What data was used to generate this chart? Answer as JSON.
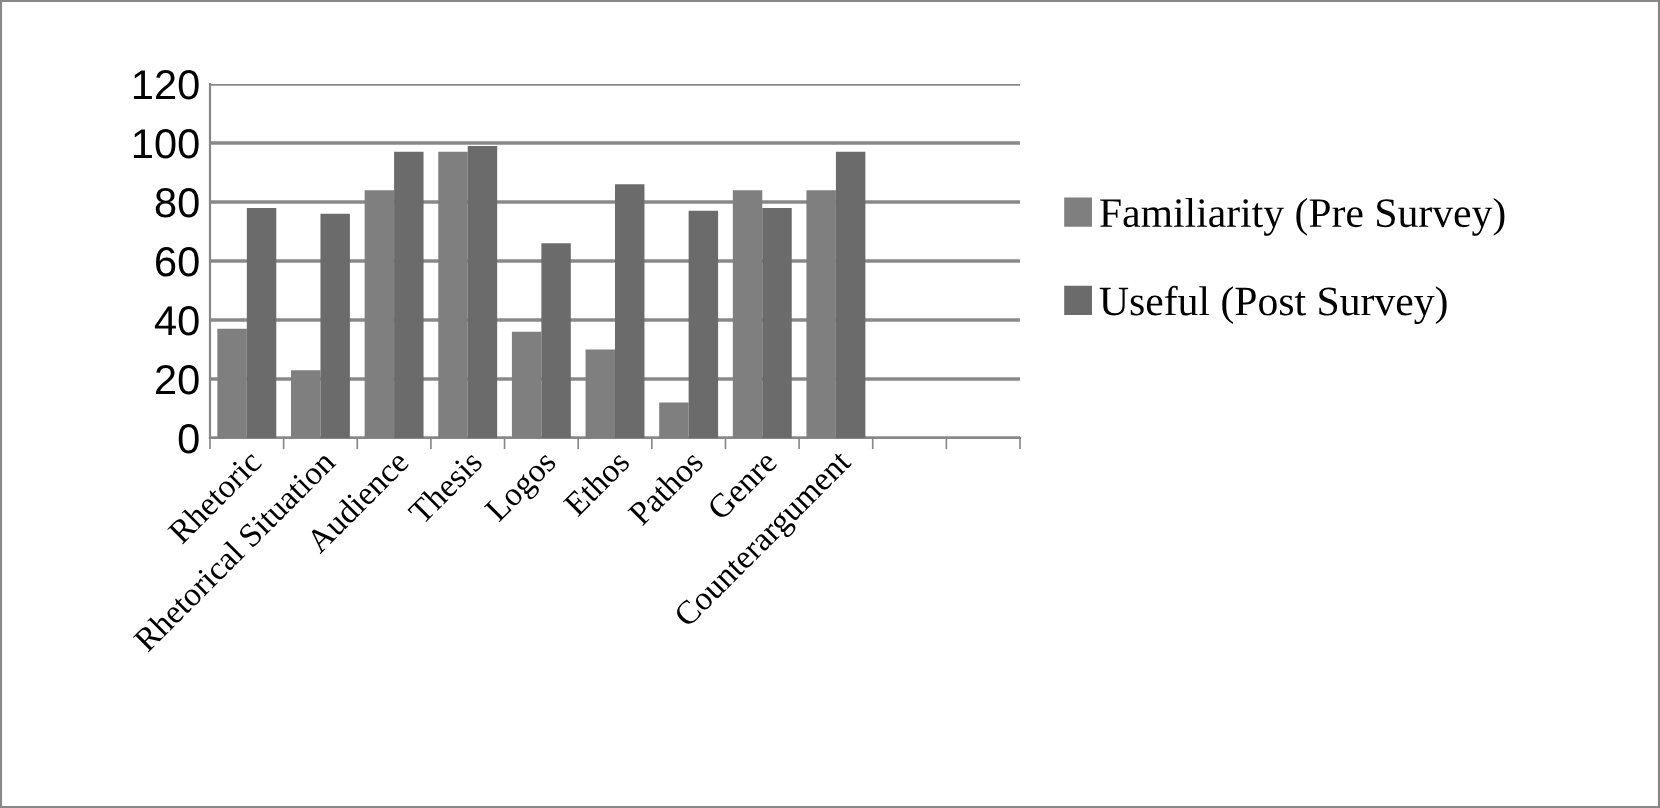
{
  "chart_data": {
    "type": "bar",
    "categories": [
      "Rhetoric",
      "Rhetorical Situation",
      "Audience",
      "Thesis",
      "Logos",
      "Ethos",
      "Pathos",
      "Genre",
      "Counterargument",
      null,
      null
    ],
    "series": [
      {
        "name": "Familiarity (Pre Survey)",
        "color": "#7f7f7f",
        "values": [
          37,
          23,
          84,
          97,
          36,
          30,
          12,
          84,
          84,
          null,
          null
        ]
      },
      {
        "name": "Useful (Post Survey)",
        "color": "#6b6b6b",
        "values": [
          78,
          76,
          97,
          99,
          66,
          86,
          77,
          78,
          97,
          null,
          null
        ]
      }
    ],
    "ylim": [
      0,
      120
    ],
    "yticks": [
      0,
      20,
      40,
      60,
      80,
      100,
      120
    ],
    "grid": "y",
    "legend": "right"
  }
}
